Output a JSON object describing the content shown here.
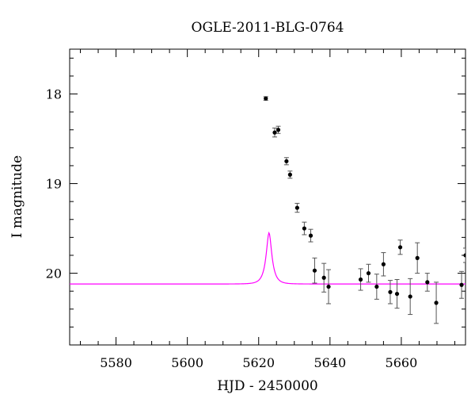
{
  "chart_data": {
    "type": "scatter",
    "title": "OGLE-2011-BLG-0764",
    "xlabel": "HJD - 2450000",
    "ylabel": "I magnitude",
    "xlim": [
      5567,
      5678
    ],
    "ylim": [
      20.8,
      17.5
    ],
    "y_inverted": true,
    "x_ticks": [
      5580,
      5600,
      5620,
      5640,
      5660
    ],
    "y_ticks": [
      18,
      19,
      20
    ],
    "x_minor_step": 5,
    "y_minor_step": 0.2,
    "grid": false,
    "colors": {
      "model": "#ff00ff",
      "points": "#000000",
      "errorbars": "#555555"
    },
    "series": [
      {
        "type": "scatter",
        "x": [
          5622.0,
          5624.5,
          5625.5,
          5627.8,
          5628.8,
          5630.8,
          5632.8,
          5634.6,
          5635.7,
          5638.3,
          5639.6,
          5648.6,
          5650.8,
          5653.1,
          5655.0,
          5656.9,
          5658.8,
          5659.7,
          5662.5,
          5664.5,
          5667.3,
          5669.8,
          5676.9,
          5678.0
        ],
        "y": [
          18.05,
          18.43,
          18.4,
          18.75,
          18.9,
          19.27,
          19.5,
          19.58,
          19.97,
          20.05,
          20.15,
          20.07,
          20.0,
          20.15,
          19.9,
          20.21,
          20.23,
          19.71,
          20.26,
          19.83,
          20.1,
          20.33,
          20.13,
          19.8
        ],
        "err": [
          0.02,
          0.05,
          0.04,
          0.04,
          0.04,
          0.05,
          0.07,
          0.07,
          0.14,
          0.16,
          0.19,
          0.12,
          0.1,
          0.14,
          0.13,
          0.13,
          0.16,
          0.08,
          0.2,
          0.17,
          0.1,
          0.23,
          0.15,
          0.08
        ]
      },
      {
        "type": "line",
        "model": {
          "t0": 5622.9,
          "tE": 1.8,
          "u0": 0.37,
          "I_source": 21.18,
          "I_base": 20.12
        }
      }
    ]
  }
}
